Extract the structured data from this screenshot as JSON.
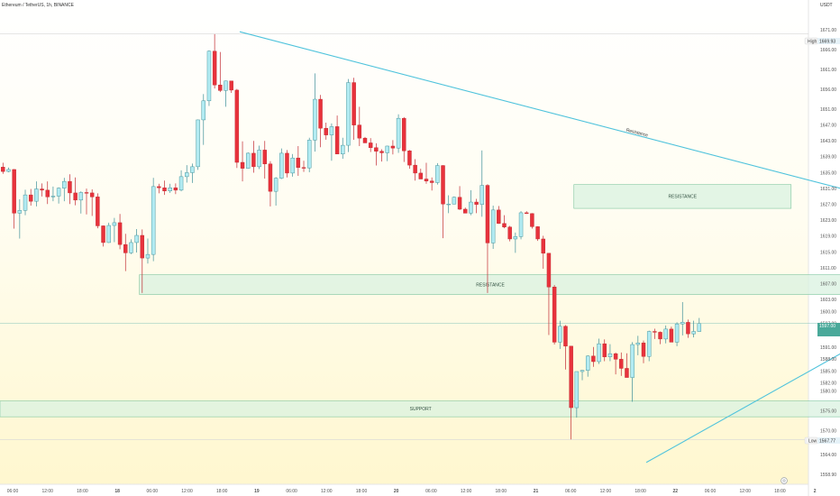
{
  "header": {
    "symbol_title": "Ethereum / TetherUS, 1h, BINANCE",
    "quote_currency": "USDT"
  },
  "price_tags": {
    "high_label": "High",
    "high_value": "1669.93",
    "low_label": "Low",
    "low_value": "1567.77",
    "current_value": "1597.00"
  },
  "colors": {
    "bull": "#b2ebf2",
    "bull_border": "#3d8f99",
    "bear": "#e8323c",
    "trendline": "#4fc3dc",
    "zone_fill": "#d9f2e0",
    "zone_border": "#7fc6a0",
    "bg_top": "#ffffff",
    "bg_bottom": "#fff7cf",
    "current_tag": "#4aa99a"
  },
  "footer": {
    "settings_icon": "gear-icon"
  },
  "chart_data": {
    "type": "candlestick",
    "ylim": [
      1556.5,
      1678.5
    ],
    "y_ticks": [
      1558.9,
      1564.0,
      1570.0,
      1575.0,
      1580.0,
      1582.0,
      1585.0,
      1588.0,
      1591.0,
      1595.0,
      1597.0,
      1600.0,
      1603.0,
      1607.0,
      1611.0,
      1615.0,
      1619.0,
      1623.0,
      1627.0,
      1631.0,
      1635.0,
      1639.0,
      1643.0,
      1647.0,
      1651.0,
      1656.0,
      1661.0,
      1666.0,
      1671.0,
      1676.0
    ],
    "x_labels": [
      "06:00",
      "12:00",
      "18:00",
      "18",
      "06:00",
      "12:00",
      "18:00",
      "19",
      "06:00",
      "12:00",
      "18:00",
      "20",
      "06:00",
      "12:00",
      "18:00",
      "21",
      "06:00",
      "12:00",
      "18:00",
      "22",
      "06:00",
      "12:00",
      "18:00",
      "2"
    ],
    "zones": [
      {
        "label": "RESISTANCE",
        "low": 1626.0,
        "high": 1632.0,
        "x_start": 102.5,
        "x_end": 141.5
      },
      {
        "label": "RESISTANCE",
        "low": 1604.3,
        "high": 1609.3,
        "x_start": 24.5,
        "x_end": 150.5
      },
      {
        "label": "SUPPORT",
        "low": 1573.5,
        "high": 1577.5,
        "x_start": 0,
        "x_end": 150.5
      }
    ],
    "trendlines": [
      {
        "label": "Resistance",
        "points": [
          [
            42.5,
            1670.5
          ],
          [
            150.5,
            1631.0
          ]
        ]
      },
      {
        "label": "",
        "points": [
          [
            115.5,
            1562.0
          ],
          [
            150.5,
            1589.5
          ]
        ]
      }
    ],
    "high_level": 1669.93,
    "low_level": 1567.77,
    "current_level": 1597.0,
    "candles": [
      {
        "o": 1636.4,
        "h": 1637.5,
        "l": 1634.7,
        "c": 1635.3
      },
      {
        "o": 1635.3,
        "h": 1636.3,
        "l": 1635.1,
        "c": 1635.8
      },
      {
        "o": 1635.8,
        "h": 1635.9,
        "l": 1620.9,
        "c": 1624.8
      },
      {
        "o": 1624.8,
        "h": 1628.3,
        "l": 1618.4,
        "c": 1625.5
      },
      {
        "o": 1625.5,
        "h": 1630.7,
        "l": 1624.3,
        "c": 1629.4
      },
      {
        "o": 1629.4,
        "h": 1630.9,
        "l": 1626.7,
        "c": 1627.8
      },
      {
        "o": 1627.8,
        "h": 1632.8,
        "l": 1626.5,
        "c": 1630.9
      },
      {
        "o": 1630.9,
        "h": 1632.3,
        "l": 1629.0,
        "c": 1630.6
      },
      {
        "o": 1630.6,
        "h": 1632.8,
        "l": 1627.1,
        "c": 1628.9
      },
      {
        "o": 1628.9,
        "h": 1631.5,
        "l": 1627.8,
        "c": 1629.1
      },
      {
        "o": 1629.1,
        "h": 1631.3,
        "l": 1627.2,
        "c": 1631.1
      },
      {
        "o": 1631.1,
        "h": 1633.7,
        "l": 1627.8,
        "c": 1632.8
      },
      {
        "o": 1632.8,
        "h": 1634.6,
        "l": 1627.1,
        "c": 1629.9
      },
      {
        "o": 1629.9,
        "h": 1633.8,
        "l": 1626.8,
        "c": 1628.1
      },
      {
        "o": 1628.1,
        "h": 1630.3,
        "l": 1624.7,
        "c": 1630.0
      },
      {
        "o": 1630.0,
        "h": 1631.0,
        "l": 1624.5,
        "c": 1629.9
      },
      {
        "o": 1629.9,
        "h": 1630.8,
        "l": 1624.1,
        "c": 1628.9
      },
      {
        "o": 1628.9,
        "h": 1629.8,
        "l": 1621.0,
        "c": 1621.6
      },
      {
        "o": 1621.6,
        "h": 1621.7,
        "l": 1616.4,
        "c": 1617.4
      },
      {
        "o": 1617.4,
        "h": 1622.4,
        "l": 1617.3,
        "c": 1621.7
      },
      {
        "o": 1621.7,
        "h": 1623.6,
        "l": 1617.5,
        "c": 1622.4
      },
      {
        "o": 1622.4,
        "h": 1624.6,
        "l": 1615.7,
        "c": 1616.9
      },
      {
        "o": 1616.9,
        "h": 1619.6,
        "l": 1610.2,
        "c": 1614.8
      },
      {
        "o": 1614.8,
        "h": 1618.2,
        "l": 1614.5,
        "c": 1617.4
      },
      {
        "o": 1617.4,
        "h": 1620.8,
        "l": 1614.9,
        "c": 1619.2
      },
      {
        "o": 1619.2,
        "h": 1620.7,
        "l": 1604.7,
        "c": 1613.5
      },
      {
        "o": 1613.5,
        "h": 1618.4,
        "l": 1612.1,
        "c": 1614.4
      },
      {
        "o": 1614.4,
        "h": 1633.7,
        "l": 1612.7,
        "c": 1631.5
      },
      {
        "o": 1631.5,
        "h": 1632.2,
        "l": 1629.8,
        "c": 1631.2
      },
      {
        "o": 1631.2,
        "h": 1633.0,
        "l": 1629.4,
        "c": 1630.4
      },
      {
        "o": 1630.4,
        "h": 1632.2,
        "l": 1629.9,
        "c": 1631.2
      },
      {
        "o": 1631.2,
        "h": 1632.3,
        "l": 1629.6,
        "c": 1630.6
      },
      {
        "o": 1630.6,
        "h": 1635.6,
        "l": 1630.3,
        "c": 1634.0
      },
      {
        "o": 1634.0,
        "h": 1636.9,
        "l": 1632.5,
        "c": 1635.0
      },
      {
        "o": 1635.0,
        "h": 1637.3,
        "l": 1632.4,
        "c": 1636.5
      },
      {
        "o": 1636.5,
        "h": 1648.4,
        "l": 1635.7,
        "c": 1648.3
      },
      {
        "o": 1648.3,
        "h": 1654.8,
        "l": 1642.0,
        "c": 1653.1
      },
      {
        "o": 1653.1,
        "h": 1665.8,
        "l": 1651.8,
        "c": 1665.6
      },
      {
        "o": 1665.6,
        "h": 1669.9,
        "l": 1656.2,
        "c": 1657.1
      },
      {
        "o": 1657.1,
        "h": 1665.4,
        "l": 1655.3,
        "c": 1655.7
      },
      {
        "o": 1655.7,
        "h": 1658.2,
        "l": 1651.6,
        "c": 1658.1
      },
      {
        "o": 1658.1,
        "h": 1658.1,
        "l": 1655.1,
        "c": 1655.8
      },
      {
        "o": 1655.8,
        "h": 1656.1,
        "l": 1636.2,
        "c": 1637.6
      },
      {
        "o": 1637.6,
        "h": 1642.9,
        "l": 1632.8,
        "c": 1636.1
      },
      {
        "o": 1636.1,
        "h": 1640.1,
        "l": 1636.0,
        "c": 1639.9
      },
      {
        "o": 1639.9,
        "h": 1643.0,
        "l": 1635.0,
        "c": 1636.5
      },
      {
        "o": 1636.5,
        "h": 1641.8,
        "l": 1635.9,
        "c": 1640.7
      },
      {
        "o": 1640.7,
        "h": 1643.0,
        "l": 1633.5,
        "c": 1637.2
      },
      {
        "o": 1637.2,
        "h": 1637.9,
        "l": 1626.5,
        "c": 1630.3
      },
      {
        "o": 1630.3,
        "h": 1633.9,
        "l": 1626.7,
        "c": 1633.6
      },
      {
        "o": 1633.6,
        "h": 1641.1,
        "l": 1633.4,
        "c": 1639.9
      },
      {
        "o": 1639.9,
        "h": 1640.7,
        "l": 1633.8,
        "c": 1634.9
      },
      {
        "o": 1634.9,
        "h": 1639.7,
        "l": 1634.0,
        "c": 1638.7
      },
      {
        "o": 1638.7,
        "h": 1641.7,
        "l": 1634.2,
        "c": 1636.3
      },
      {
        "o": 1636.3,
        "h": 1638.0,
        "l": 1635.2,
        "c": 1636.2
      },
      {
        "o": 1636.2,
        "h": 1643.8,
        "l": 1635.1,
        "c": 1643.2
      },
      {
        "o": 1643.2,
        "h": 1660.0,
        "l": 1640.3,
        "c": 1653.5
      },
      {
        "o": 1653.5,
        "h": 1654.6,
        "l": 1641.4,
        "c": 1646.2
      },
      {
        "o": 1646.2,
        "h": 1647.6,
        "l": 1643.3,
        "c": 1644.5
      },
      {
        "o": 1644.5,
        "h": 1647.4,
        "l": 1638.0,
        "c": 1646.6
      },
      {
        "o": 1646.6,
        "h": 1649.4,
        "l": 1640.0,
        "c": 1639.7
      },
      {
        "o": 1639.7,
        "h": 1643.8,
        "l": 1638.5,
        "c": 1641.9
      },
      {
        "o": 1641.9,
        "h": 1658.6,
        "l": 1640.2,
        "c": 1657.7
      },
      {
        "o": 1657.7,
        "h": 1658.9,
        "l": 1643.3,
        "c": 1647.0
      },
      {
        "o": 1647.0,
        "h": 1651.6,
        "l": 1641.7,
        "c": 1643.7
      },
      {
        "o": 1643.7,
        "h": 1644.0,
        "l": 1642.5,
        "c": 1642.5
      },
      {
        "o": 1642.5,
        "h": 1643.7,
        "l": 1640.2,
        "c": 1641.3
      },
      {
        "o": 1641.3,
        "h": 1642.4,
        "l": 1636.8,
        "c": 1640.4
      },
      {
        "o": 1640.4,
        "h": 1640.9,
        "l": 1637.8,
        "c": 1640.0
      },
      {
        "o": 1640.0,
        "h": 1641.8,
        "l": 1637.9,
        "c": 1641.7
      },
      {
        "o": 1641.7,
        "h": 1643.2,
        "l": 1639.6,
        "c": 1641.2
      },
      {
        "o": 1641.2,
        "h": 1649.7,
        "l": 1640.0,
        "c": 1648.7
      },
      {
        "o": 1648.7,
        "h": 1649.0,
        "l": 1637.7,
        "c": 1640.5
      },
      {
        "o": 1640.5,
        "h": 1640.7,
        "l": 1636.0,
        "c": 1636.9
      },
      {
        "o": 1636.9,
        "h": 1638.4,
        "l": 1633.0,
        "c": 1634.9
      },
      {
        "o": 1634.9,
        "h": 1636.0,
        "l": 1633.6,
        "c": 1633.4
      },
      {
        "o": 1633.4,
        "h": 1637.5,
        "l": 1632.2,
        "c": 1632.9
      },
      {
        "o": 1632.9,
        "h": 1633.8,
        "l": 1630.5,
        "c": 1632.5
      },
      {
        "o": 1632.5,
        "h": 1637.4,
        "l": 1632.0,
        "c": 1636.8
      },
      {
        "o": 1636.8,
        "h": 1636.9,
        "l": 1618.5,
        "c": 1627.1
      },
      {
        "o": 1627.1,
        "h": 1629.3,
        "l": 1624.8,
        "c": 1627.1
      },
      {
        "o": 1627.1,
        "h": 1629.0,
        "l": 1627.0,
        "c": 1628.8
      },
      {
        "o": 1628.8,
        "h": 1631.6,
        "l": 1625.6,
        "c": 1625.8
      },
      {
        "o": 1625.8,
        "h": 1626.2,
        "l": 1624.8,
        "c": 1624.8
      },
      {
        "o": 1624.8,
        "h": 1630.6,
        "l": 1624.3,
        "c": 1627.6
      },
      {
        "o": 1627.6,
        "h": 1628.4,
        "l": 1624.8,
        "c": 1627.0
      },
      {
        "o": 1627.0,
        "h": 1640.6,
        "l": 1623.9,
        "c": 1631.8
      },
      {
        "o": 1631.8,
        "h": 1632.1,
        "l": 1604.7,
        "c": 1617.3
      },
      {
        "o": 1617.3,
        "h": 1626.7,
        "l": 1615.8,
        "c": 1625.6
      },
      {
        "o": 1625.6,
        "h": 1626.6,
        "l": 1622.1,
        "c": 1622.2
      },
      {
        "o": 1622.2,
        "h": 1624.3,
        "l": 1621.0,
        "c": 1621.3
      },
      {
        "o": 1621.3,
        "h": 1621.6,
        "l": 1617.7,
        "c": 1618.3
      },
      {
        "o": 1618.3,
        "h": 1619.9,
        "l": 1614.8,
        "c": 1618.9
      },
      {
        "o": 1618.9,
        "h": 1625.3,
        "l": 1618.2,
        "c": 1624.9
      },
      {
        "o": 1624.9,
        "h": 1625.3,
        "l": 1624.6,
        "c": 1624.7
      },
      {
        "o": 1624.7,
        "h": 1624.8,
        "l": 1620.9,
        "c": 1621.4
      },
      {
        "o": 1621.4,
        "h": 1621.5,
        "l": 1617.8,
        "c": 1618.3
      },
      {
        "o": 1618.3,
        "h": 1619.1,
        "l": 1610.8,
        "c": 1614.7
      },
      {
        "o": 1614.7,
        "h": 1614.7,
        "l": 1594.1,
        "c": 1606.2
      },
      {
        "o": 1606.2,
        "h": 1606.7,
        "l": 1591.7,
        "c": 1592.3
      },
      {
        "o": 1592.3,
        "h": 1597.7,
        "l": 1590.6,
        "c": 1596.3
      },
      {
        "o": 1596.3,
        "h": 1596.6,
        "l": 1585.4,
        "c": 1591.3
      },
      {
        "o": 1591.3,
        "h": 1591.3,
        "l": 1567.8,
        "c": 1575.8
      },
      {
        "o": 1575.8,
        "h": 1584.9,
        "l": 1573.3,
        "c": 1584.9
      },
      {
        "o": 1584.9,
        "h": 1585.3,
        "l": 1582.7,
        "c": 1585.2
      },
      {
        "o": 1585.2,
        "h": 1589.0,
        "l": 1583.6,
        "c": 1588.8
      },
      {
        "o": 1588.8,
        "h": 1591.1,
        "l": 1586.1,
        "c": 1587.4
      },
      {
        "o": 1587.4,
        "h": 1593.2,
        "l": 1586.8,
        "c": 1591.9
      },
      {
        "o": 1591.9,
        "h": 1593.0,
        "l": 1587.5,
        "c": 1588.6
      },
      {
        "o": 1588.6,
        "h": 1591.8,
        "l": 1587.5,
        "c": 1589.4
      },
      {
        "o": 1589.4,
        "h": 1589.7,
        "l": 1584.2,
        "c": 1588.0
      },
      {
        "o": 1588.0,
        "h": 1589.7,
        "l": 1583.8,
        "c": 1585.7
      },
      {
        "o": 1585.7,
        "h": 1589.5,
        "l": 1584.6,
        "c": 1583.4
      },
      {
        "o": 1583.4,
        "h": 1592.3,
        "l": 1577.3,
        "c": 1591.7
      },
      {
        "o": 1591.7,
        "h": 1593.9,
        "l": 1589.0,
        "c": 1592.1
      },
      {
        "o": 1592.1,
        "h": 1592.7,
        "l": 1587.0,
        "c": 1588.7
      },
      {
        "o": 1588.7,
        "h": 1595.2,
        "l": 1587.5,
        "c": 1595.0
      },
      {
        "o": 1595.0,
        "h": 1595.7,
        "l": 1593.1,
        "c": 1594.8
      },
      {
        "o": 1594.8,
        "h": 1595.0,
        "l": 1591.8,
        "c": 1593.1
      },
      {
        "o": 1593.1,
        "h": 1596.5,
        "l": 1592.0,
        "c": 1595.6
      },
      {
        "o": 1595.6,
        "h": 1596.2,
        "l": 1593.3,
        "c": 1592.3
      },
      {
        "o": 1592.3,
        "h": 1597.3,
        "l": 1591.3,
        "c": 1596.9
      },
      {
        "o": 1596.9,
        "h": 1602.4,
        "l": 1594.0,
        "c": 1597.3
      },
      {
        "o": 1597.3,
        "h": 1598.0,
        "l": 1593.4,
        "c": 1594.4
      },
      {
        "o": 1594.4,
        "h": 1597.7,
        "l": 1593.5,
        "c": 1595.0
      },
      {
        "o": 1595.0,
        "h": 1598.4,
        "l": 1594.9,
        "c": 1597.0
      }
    ]
  }
}
